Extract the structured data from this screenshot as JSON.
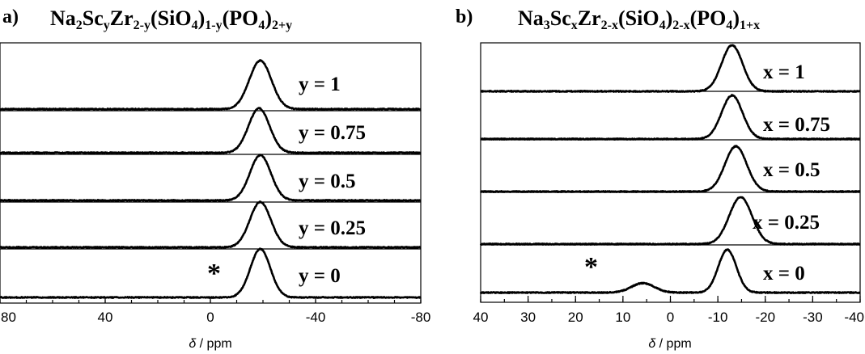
{
  "chart_data": [
    {
      "type": "line",
      "panel_label": "a)",
      "title": {
        "parts": [
          "Na",
          "2",
          "Sc",
          "y",
          "Zr",
          "2-y",
          "(SiO",
          "4",
          ")",
          "1-y",
          "(PO",
          "4",
          ")",
          "2+y"
        ]
      },
      "xlabel": "δ / ppm",
      "xlim": [
        80,
        -80
      ],
      "x_ticks": [
        80,
        40,
        0,
        -40,
        -80
      ],
      "x_tick_labels": [
        "80",
        "40",
        "0",
        "-40",
        "-80"
      ],
      "stacked": true,
      "series": [
        {
          "name": "y = 1",
          "peaks": [
            {
              "center": -19,
              "width": 4.2,
              "height": 1.0
            }
          ]
        },
        {
          "name": "y = 0.75",
          "peaks": [
            {
              "center": -18.5,
              "width": 4.0,
              "height": 1.0
            }
          ]
        },
        {
          "name": "y = 0.5",
          "peaks": [
            {
              "center": -19,
              "width": 4.0,
              "height": 1.0
            }
          ]
        },
        {
          "name": "y = 0.25",
          "peaks": [
            {
              "center": -19,
              "width": 4.0,
              "height": 1.0
            }
          ]
        },
        {
          "name": "y = 0",
          "peaks": [
            {
              "center": -19,
              "width": 3.8,
              "height": 1.0
            }
          ]
        }
      ],
      "annotation": "*"
    },
    {
      "type": "line",
      "panel_label": "b)",
      "title": {
        "parts": [
          "Na",
          "3",
          "Sc",
          "x",
          "Zr",
          "2-x",
          "(SiO",
          "4",
          ")",
          "2-x",
          "(PO",
          "4",
          ")",
          "1+x"
        ]
      },
      "xlabel": "δ / ppm",
      "xlim": [
        40,
        -40
      ],
      "x_ticks": [
        40,
        30,
        20,
        10,
        0,
        -10,
        -20,
        -30,
        -40
      ],
      "x_tick_labels": [
        "40",
        "30",
        "20",
        "10",
        "0",
        "-10",
        "-20",
        "-30",
        "-40"
      ],
      "stacked": true,
      "series": [
        {
          "name": "x = 1",
          "peaks": [
            {
              "center": -13,
              "width": 2.2,
              "height": 1.0
            }
          ]
        },
        {
          "name": "x = 0.75",
          "peaks": [
            {
              "center": -13,
              "width": 2.2,
              "height": 1.0
            }
          ]
        },
        {
          "name": "x = 0.5",
          "peaks": [
            {
              "center": -13.8,
              "width": 2.3,
              "height": 1.0
            }
          ]
        },
        {
          "name": "x = 0.25",
          "peaks": [
            {
              "center": -14.8,
              "width": 2.4,
              "height": 1.0
            }
          ]
        },
        {
          "name": "x = 0",
          "peaks": [
            {
              "center": -12,
              "width": 1.9,
              "height": 1.0
            },
            {
              "center": 5.8,
              "width": 2.4,
              "height": 0.22
            }
          ]
        }
      ],
      "annotation": "*"
    }
  ]
}
